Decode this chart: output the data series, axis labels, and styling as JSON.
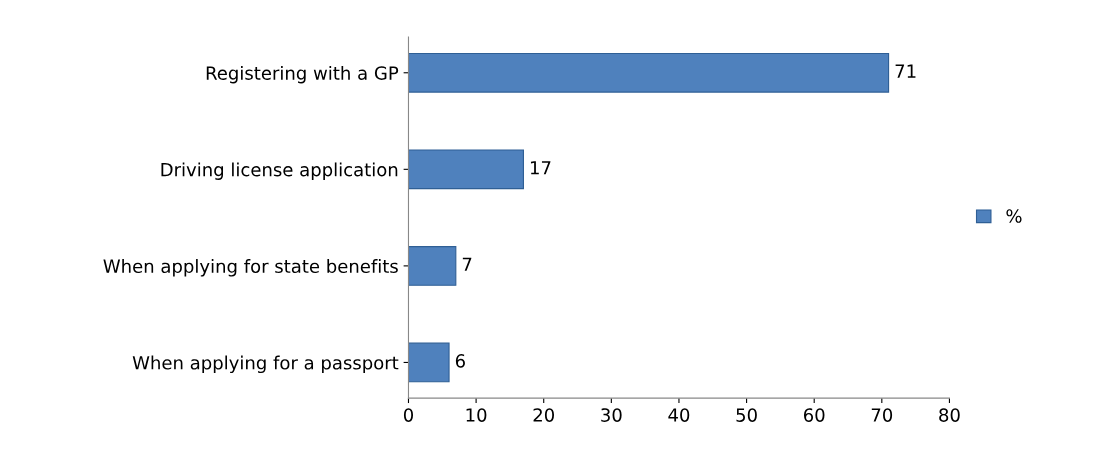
{
  "chart_data": {
    "type": "bar",
    "orientation": "horizontal",
    "categories": [
      "Registering with a GP",
      "Driving license application",
      "When applying for state benefits",
      "When applying for a passport"
    ],
    "series": [
      {
        "name": "%",
        "color": "#4f81bd",
        "values": [
          71,
          17,
          7,
          6
        ]
      }
    ],
    "xlim": [
      0,
      80
    ],
    "xticks": [
      0,
      10,
      20,
      30,
      40,
      50,
      60,
      70,
      80
    ],
    "data_labels": true,
    "legend": "right",
    "grid": false
  }
}
